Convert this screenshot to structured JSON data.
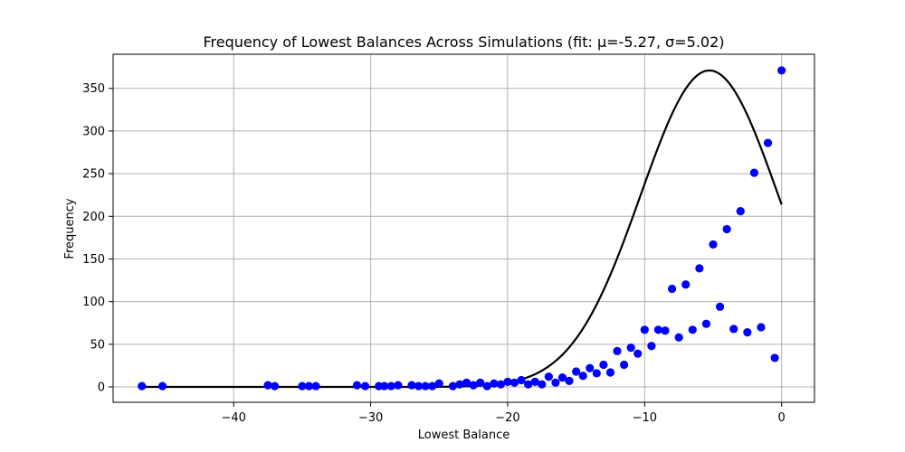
{
  "chart_data": {
    "type": "scatter",
    "title": "Frequency of Lowest Balances Across Simulations (fit: μ=-5.27, σ=5.02)",
    "xlabel": "Lowest Balance",
    "ylabel": "Frequency",
    "xlim": [
      -48.8,
      2.4
    ],
    "ylim": [
      -18,
      390
    ],
    "xticks": [
      -40,
      -30,
      -20,
      -10,
      0
    ],
    "xtick_labels": [
      "−40",
      "−30",
      "−20",
      "−10",
      "0"
    ],
    "yticks": [
      0,
      50,
      100,
      150,
      200,
      250,
      300,
      350
    ],
    "ytick_labels": [
      "0",
      "50",
      "100",
      "150",
      "200",
      "250",
      "300",
      "350"
    ],
    "grid": true,
    "legend": "none",
    "series": [
      {
        "kind": "scatter",
        "color": "#0000ff",
        "points": [
          [
            -46.7,
            1
          ],
          [
            -45.2,
            1
          ],
          [
            -37.5,
            2
          ],
          [
            -37.0,
            1
          ],
          [
            -35.0,
            1
          ],
          [
            -34.5,
            1
          ],
          [
            -34.0,
            1
          ],
          [
            -31.0,
            2
          ],
          [
            -30.4,
            1
          ],
          [
            -29.4,
            1
          ],
          [
            -29.0,
            1
          ],
          [
            -28.5,
            1
          ],
          [
            -28.0,
            2
          ],
          [
            -27.0,
            2
          ],
          [
            -26.5,
            1
          ],
          [
            -26.0,
            1
          ],
          [
            -25.5,
            1
          ],
          [
            -25.0,
            4
          ],
          [
            -24.0,
            1
          ],
          [
            -23.5,
            3
          ],
          [
            -23.0,
            5
          ],
          [
            -22.5,
            2
          ],
          [
            -22.0,
            5
          ],
          [
            -21.5,
            1
          ],
          [
            -21.0,
            4
          ],
          [
            -20.5,
            3
          ],
          [
            -20.0,
            6
          ],
          [
            -19.5,
            5
          ],
          [
            -19.0,
            8
          ],
          [
            -18.5,
            3
          ],
          [
            -18.0,
            6
          ],
          [
            -17.5,
            3
          ],
          [
            -17.0,
            12
          ],
          [
            -16.5,
            5
          ],
          [
            -16.0,
            11
          ],
          [
            -15.5,
            7
          ],
          [
            -15.0,
            18
          ],
          [
            -14.5,
            13
          ],
          [
            -14.0,
            22
          ],
          [
            -13.5,
            16
          ],
          [
            -13.0,
            26
          ],
          [
            -12.5,
            17
          ],
          [
            -12.0,
            42
          ],
          [
            -11.5,
            26
          ],
          [
            -11.0,
            46
          ],
          [
            -10.5,
            39
          ],
          [
            -10.0,
            67
          ],
          [
            -9.5,
            48
          ],
          [
            -9.0,
            67
          ],
          [
            -8.5,
            66
          ],
          [
            -8.0,
            115
          ],
          [
            -7.5,
            58
          ],
          [
            -7.0,
            120
          ],
          [
            -6.5,
            67
          ],
          [
            -6.0,
            139
          ],
          [
            -5.5,
            74
          ],
          [
            -5.0,
            167
          ],
          [
            -4.5,
            94
          ],
          [
            -4.0,
            185
          ],
          [
            -3.5,
            68
          ],
          [
            -3.0,
            206
          ],
          [
            -2.5,
            64
          ],
          [
            -2.0,
            251
          ],
          [
            -1.5,
            70
          ],
          [
            -1.0,
            286
          ],
          [
            -0.5,
            34
          ],
          [
            0.0,
            371
          ]
        ]
      },
      {
        "kind": "line",
        "color": "#000000",
        "fit": "normal",
        "mu": -5.27,
        "sigma": 5.02,
        "peak": 371,
        "x_range": [
          -46.7,
          0.0
        ]
      }
    ]
  }
}
